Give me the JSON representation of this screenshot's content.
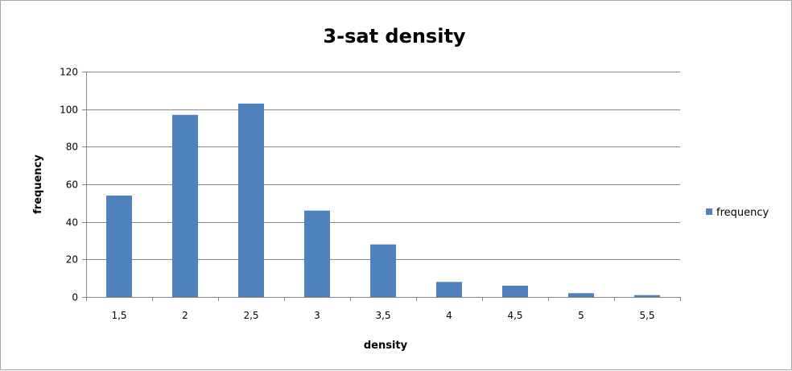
{
  "chart_data": {
    "type": "bar",
    "title": "3-sat density",
    "xlabel": "density",
    "ylabel": "frequency",
    "categories": [
      "1,5",
      "2",
      "2,5",
      "3",
      "3,5",
      "4",
      "4,5",
      "5",
      "5,5"
    ],
    "series": [
      {
        "name": "frequency",
        "values": [
          54,
          97,
          103,
          46,
          28,
          8,
          6,
          2,
          1
        ]
      }
    ],
    "ylim": [
      0,
      120
    ],
    "yticks": [
      "0",
      "20",
      "40",
      "60",
      "80",
      "100",
      "120"
    ],
    "grid": true,
    "legend": "right",
    "colors": {
      "bar": "#4f81bd",
      "grid": "#868686",
      "axis": "#868686"
    }
  }
}
